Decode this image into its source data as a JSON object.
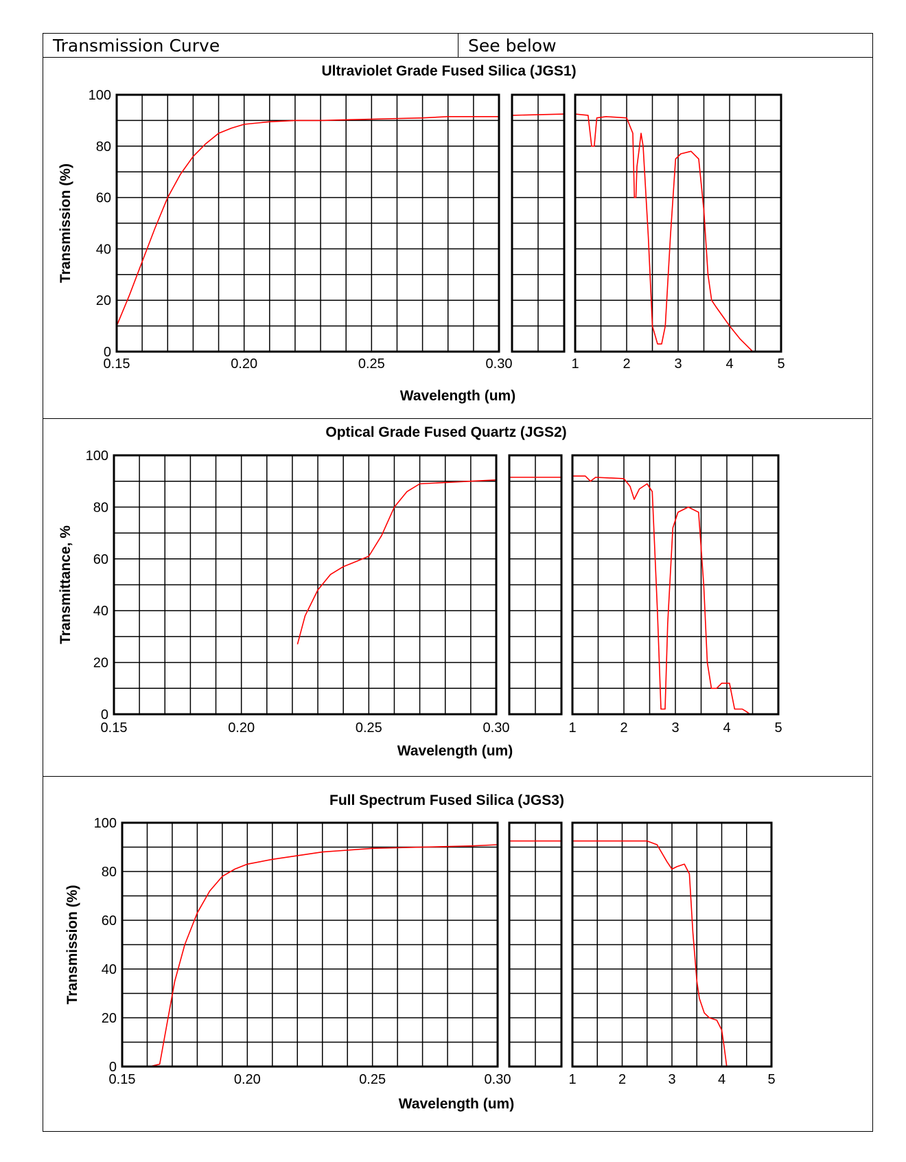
{
  "header": {
    "property_label": "Transmission Curve",
    "property_value": "See below"
  },
  "colors": {
    "curve": "#ff0000",
    "grid": "#000000",
    "background": "#ffffff"
  },
  "chart_data": [
    {
      "type": "line",
      "title": "Ultraviolet Grade Fused Silica (JGS1)",
      "xlabel": "Wavelength (um)",
      "ylabel": "Transmission (%)",
      "ylim": [
        0,
        100
      ],
      "yticks": [
        "0",
        "20",
        "40",
        "60",
        "80",
        "100"
      ],
      "grid": true,
      "panels": [
        {
          "xlim": [
            0.15,
            0.3
          ],
          "xticks": [
            "0.15",
            "0.20",
            "0.25",
            "0.30"
          ],
          "x": [
            0.15,
            0.155,
            0.16,
            0.165,
            0.17,
            0.175,
            0.18,
            0.185,
            0.19,
            0.195,
            0.2,
            0.21,
            0.22,
            0.23,
            0.25,
            0.27,
            0.28,
            0.29,
            0.3
          ],
          "y": [
            10,
            22,
            35,
            48,
            60,
            69,
            76,
            81,
            85,
            87,
            88.5,
            89.5,
            90,
            90,
            90.5,
            91,
            91.5,
            91.5,
            91.5
          ]
        },
        {
          "xlim": [
            0.3,
            1
          ],
          "xticks": [],
          "x": [
            0.3,
            1
          ],
          "y": [
            92,
            92.5
          ]
        },
        {
          "xlim": [
            1,
            5
          ],
          "xticks": [
            "1",
            "2",
            "3",
            "4",
            "5"
          ],
          "x": [
            1,
            1.25,
            1.32,
            1.37,
            1.42,
            1.6,
            2.0,
            2.12,
            2.15,
            2.18,
            2.2,
            2.25,
            2.28,
            2.32,
            2.42,
            2.5,
            2.6,
            2.68,
            2.75,
            2.85,
            2.95,
            3.05,
            3.25,
            3.4,
            3.5,
            3.58,
            3.65,
            3.75,
            4.0,
            4.2,
            4.45
          ],
          "y": [
            92.5,
            92,
            80,
            80,
            91,
            91.5,
            91,
            85,
            60,
            60,
            72,
            80,
            85,
            80,
            45,
            10,
            3,
            3,
            10,
            45,
            75,
            77,
            78,
            75,
            55,
            30,
            20,
            17,
            10,
            5,
            0
          ]
        }
      ]
    },
    {
      "type": "line",
      "title": "Optical Grade Fused Quartz  (JGS2)",
      "xlabel": "Wavelength (um)",
      "ylabel": "Transmittance, %",
      "ylim": [
        0,
        100
      ],
      "yticks": [
        "0",
        "20",
        "40",
        "60",
        "80",
        "100"
      ],
      "grid": true,
      "panels": [
        {
          "xlim": [
            0.15,
            0.3
          ],
          "xticks": [
            "0.15",
            "0.20",
            "0.25",
            "0.30"
          ],
          "x": [
            0.222,
            0.225,
            0.23,
            0.235,
            0.24,
            0.245,
            0.25,
            0.255,
            0.26,
            0.265,
            0.27,
            0.28,
            0.29,
            0.3
          ],
          "y": [
            27,
            38,
            48,
            54,
            57,
            59,
            61,
            69,
            80,
            86,
            89,
            89.5,
            90,
            90.5
          ]
        },
        {
          "xlim": [
            0.3,
            1
          ],
          "xticks": [],
          "x": [
            0.3,
            1
          ],
          "y": [
            91.5,
            91.5
          ]
        },
        {
          "xlim": [
            1,
            5
          ],
          "xticks": [
            "1",
            "2",
            "3",
            "4",
            "5"
          ],
          "x": [
            1,
            1.25,
            1.35,
            1.45,
            2.0,
            2.12,
            2.2,
            2.3,
            2.45,
            2.55,
            2.65,
            2.72,
            2.8,
            2.85,
            2.95,
            3.05,
            3.25,
            3.45,
            3.55,
            3.62,
            3.7,
            3.8,
            3.9,
            4.05,
            4.15,
            4.3,
            4.38,
            4.45
          ],
          "y": [
            92,
            92,
            90,
            91.5,
            91,
            88,
            83,
            87,
            89,
            86,
            40,
            2,
            2,
            35,
            72,
            78,
            80,
            78,
            50,
            20,
            10,
            10,
            12,
            12,
            2,
            2,
            1,
            0
          ]
        }
      ]
    },
    {
      "type": "line",
      "title": "Full Spectrum Fused Silica (JGS3)",
      "xlabel": "Wavelength (um)",
      "ylabel": "Transmission (%)",
      "ylim": [
        0,
        100
      ],
      "yticks": [
        "0",
        "20",
        "40",
        "60",
        "80",
        "100"
      ],
      "grid": true,
      "panels": [
        {
          "xlim": [
            0.15,
            0.3
          ],
          "xticks": [
            "0.15",
            "0.20",
            "0.25",
            "0.30"
          ],
          "x": [
            0.161,
            0.165,
            0.168,
            0.171,
            0.175,
            0.18,
            0.185,
            0.19,
            0.195,
            0.2,
            0.21,
            0.22,
            0.23,
            0.25,
            0.27,
            0.29,
            0.3
          ],
          "y": [
            0,
            1,
            18,
            35,
            50,
            63,
            72,
            78,
            81,
            83,
            85,
            86.5,
            88,
            89.5,
            90,
            90.5,
            91
          ]
        },
        {
          "xlim": [
            0.3,
            1
          ],
          "xticks": [],
          "x": [
            0.3,
            1
          ],
          "y": [
            92.5,
            92.5
          ]
        },
        {
          "xlim": [
            1,
            5
          ],
          "xticks": [
            "1",
            "2",
            "3",
            "4",
            "5"
          ],
          "x": [
            1,
            2.5,
            2.7,
            2.9,
            3.0,
            3.1,
            3.25,
            3.35,
            3.42,
            3.5,
            3.55,
            3.65,
            3.75,
            3.9,
            4.0,
            4.05,
            4.1,
            4.3
          ],
          "y": [
            92.5,
            92.5,
            91,
            84,
            81,
            82,
            83,
            79,
            55,
            35,
            28,
            22,
            20,
            19,
            15,
            8,
            0,
            0
          ]
        }
      ]
    }
  ]
}
